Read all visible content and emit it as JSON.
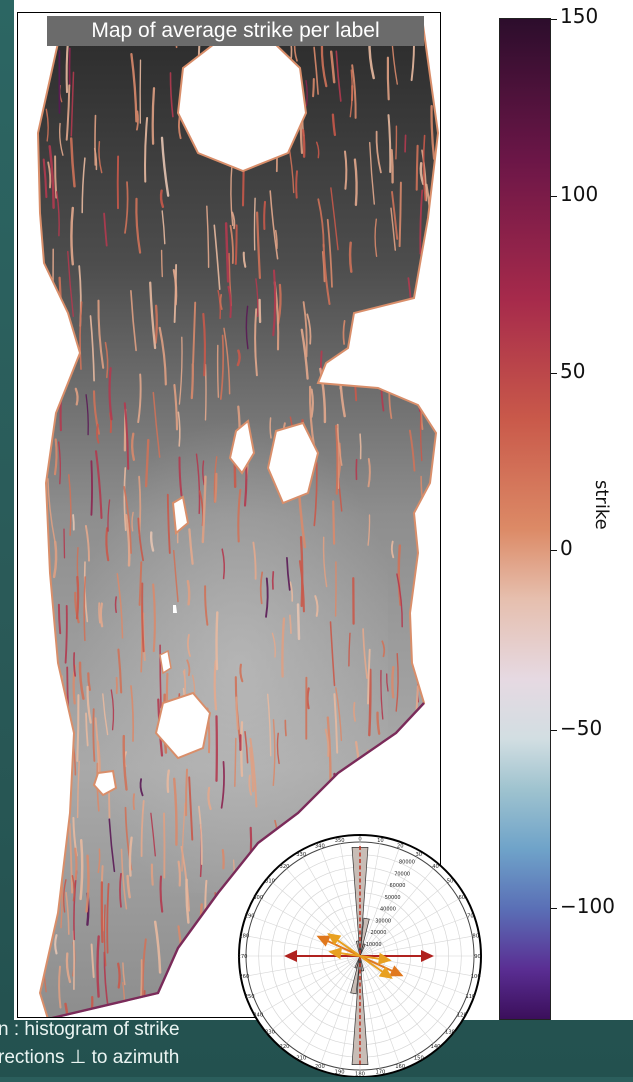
{
  "title": "Map of average strike per label",
  "colorbar": {
    "label": "strike",
    "ticks": [
      "150",
      "100",
      "50",
      "0",
      "−50",
      "−100"
    ],
    "range": [
      -125,
      150
    ],
    "cmap": "twilight_shifted"
  },
  "caption": {
    "line1": "n : histogram of strike",
    "line2": "rections ⊥ to azimuth"
  },
  "rose": {
    "angle_labels": [
      "0",
      "10",
      "20",
      "30",
      "40",
      "50",
      "60",
      "70",
      "80",
      "90",
      "100",
      "110",
      "120",
      "130",
      "140",
      "150",
      "160",
      "170",
      "180",
      "190",
      "200",
      "210",
      "220",
      "230",
      "240",
      "250",
      "260",
      "270",
      "280",
      "290",
      "300",
      "310",
      "320",
      "330",
      "340",
      "350"
    ],
    "radial_labels": [
      "80000",
      "70000",
      "60000",
      "50000",
      "40000",
      "30000",
      "20000",
      "10000"
    ]
  },
  "chart_data": [
    {
      "type": "heatmap",
      "title": "Map of average strike per label",
      "colorbar_label": "strike",
      "colorbar_range": [
        -125,
        150
      ],
      "colorbar_ticks": [
        150,
        100,
        50,
        0,
        -50,
        -100
      ],
      "description_of_content": "grayscale elevation map overlaid with fault-trace segments colored by average strike (mostly 30 to 70)"
    },
    {
      "type": "rose",
      "angle_ticks_deg": [
        0,
        10,
        20,
        30,
        40,
        50,
        60,
        70,
        80,
        90,
        100,
        110,
        120,
        130,
        140,
        150,
        160,
        170,
        180,
        190,
        200,
        210,
        220,
        230,
        240,
        250,
        260,
        270,
        280,
        290,
        300,
        310,
        320,
        330,
        340,
        350
      ],
      "radial_ticks": [
        10000,
        20000,
        30000,
        40000,
        50000,
        60000,
        70000,
        80000
      ],
      "radial_max": 90000,
      "bins": [
        {
          "angle": 0,
          "count": 86000
        },
        {
          "angle": 10,
          "count": 30000
        },
        {
          "angle": 20,
          "count": 10000
        },
        {
          "angle": 350,
          "count": 12000
        },
        {
          "angle": 180,
          "count": 86000
        },
        {
          "angle": 190,
          "count": 30000
        },
        {
          "angle": 200,
          "count": 10000
        },
        {
          "angle": 170,
          "count": 12000
        }
      ],
      "mean_direction_deg": 0
    }
  ]
}
